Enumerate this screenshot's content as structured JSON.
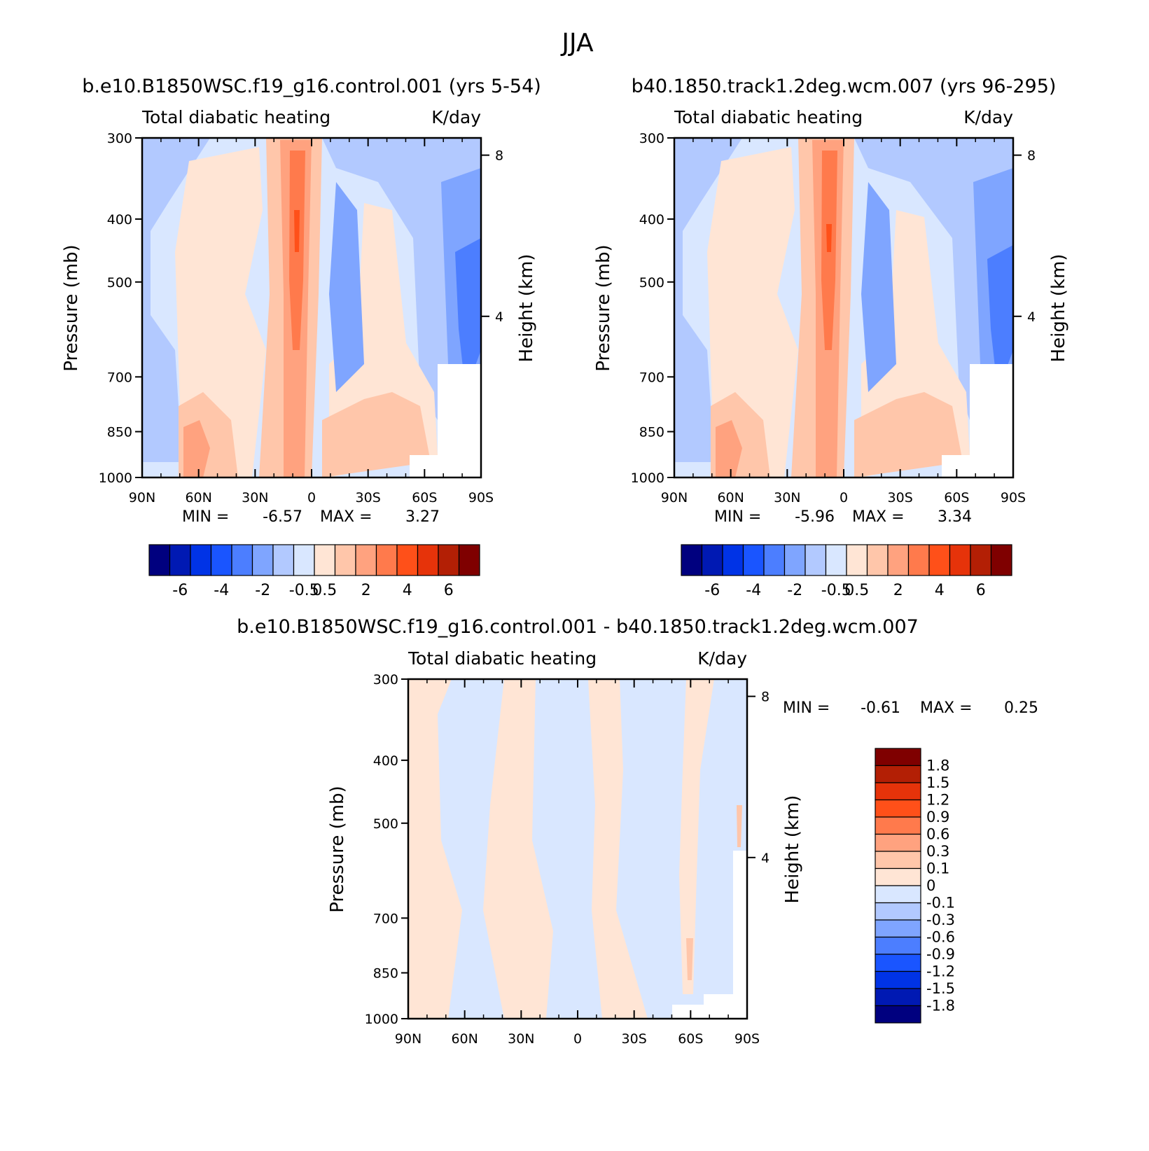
{
  "page_title": "JJA",
  "colors": {
    "left_panel_palette": [
      "#00007f",
      "#0019b3",
      "#0033e6",
      "#1a55ff",
      "#4c7eff",
      "#7fa5ff",
      "#b2c9ff",
      "#d9e7ff",
      "#ffe5d5",
      "#ffc6aa",
      "#ffa27f",
      "#ff7a4c",
      "#ff5019",
      "#e6330a",
      "#b31f05",
      "#7f0000"
    ],
    "diff_palette": [
      "#00007f",
      "#0019b3",
      "#0033e6",
      "#1a55ff",
      "#4c7eff",
      "#7fa5ff",
      "#b2c9ff",
      "#d9e7ff",
      "#ffe5d5",
      "#ffc6aa",
      "#ffa27f",
      "#ff7a4c",
      "#ff5019",
      "#e6330a",
      "#b31f05",
      "#7f0000"
    ]
  },
  "chart_data": [
    {
      "type": "heatmap",
      "title": "b.e10.B1850WSC.f19_g16.control.001 (yrs 5-54)",
      "subtitle_left": "Total diabatic heating",
      "subtitle_right": "K/day",
      "ylabel": "Pressure (mb)",
      "ylabel_right": "Height (km)",
      "x_ticks": [
        "90N",
        "60N",
        "30N",
        "0",
        "30S",
        "60S",
        "90S"
      ],
      "y_ticks": [
        "300",
        "400",
        "500",
        "700",
        "850",
        "1000"
      ],
      "y_right_ticks": [
        "8",
        "4"
      ],
      "xlim": [
        90,
        -90
      ],
      "ylim": [
        1000,
        300
      ],
      "min_label": "MIN =",
      "min_value": "-6.57",
      "max_label": "MAX =",
      "max_value": "3.27",
      "colorbar_labels": [
        "-6",
        "-4",
        "-2",
        "-0.5",
        "0.5",
        "2",
        "4",
        "6"
      ]
    },
    {
      "type": "heatmap",
      "title": "b40.1850.track1.2deg.wcm.007 (yrs 96-295)",
      "subtitle_left": "Total diabatic heating",
      "subtitle_right": "K/day",
      "ylabel": "Pressure (mb)",
      "ylabel_right": "Height (km)",
      "x_ticks": [
        "90N",
        "60N",
        "30N",
        "0",
        "30S",
        "60S",
        "90S"
      ],
      "y_ticks": [
        "300",
        "400",
        "500",
        "700",
        "850",
        "1000"
      ],
      "y_right_ticks": [
        "8",
        "4"
      ],
      "xlim": [
        90,
        -90
      ],
      "ylim": [
        1000,
        300
      ],
      "min_label": "MIN =",
      "min_value": "-5.96",
      "max_label": "MAX =",
      "max_value": "3.34",
      "colorbar_labels": [
        "-6",
        "-4",
        "-2",
        "-0.5",
        "0.5",
        "2",
        "4",
        "6"
      ]
    },
    {
      "type": "heatmap",
      "title": "b.e10.B1850WSC.f19_g16.control.001 - b40.1850.track1.2deg.wcm.007",
      "subtitle_left": "Total diabatic heating",
      "subtitle_right": "K/day",
      "ylabel": "Pressure (mb)",
      "ylabel_right": "Height (km)",
      "x_ticks": [
        "90N",
        "60N",
        "30N",
        "0",
        "30S",
        "60S",
        "90S"
      ],
      "y_ticks": [
        "300",
        "400",
        "500",
        "700",
        "850",
        "1000"
      ],
      "y_right_ticks": [
        "8",
        "4"
      ],
      "xlim": [
        90,
        -90
      ],
      "ylim": [
        1000,
        300
      ],
      "min_label": "MIN =",
      "min_value": "-0.61",
      "max_label": "MAX =",
      "max_value": "0.25",
      "colorbar_labels": [
        "1.8",
        "1.5",
        "1.2",
        "0.9",
        "0.6",
        "0.3",
        "0.1",
        "0",
        "-0.1",
        "-0.3",
        "-0.6",
        "-0.9",
        "-1.2",
        "-1.5",
        "-1.8"
      ]
    }
  ]
}
